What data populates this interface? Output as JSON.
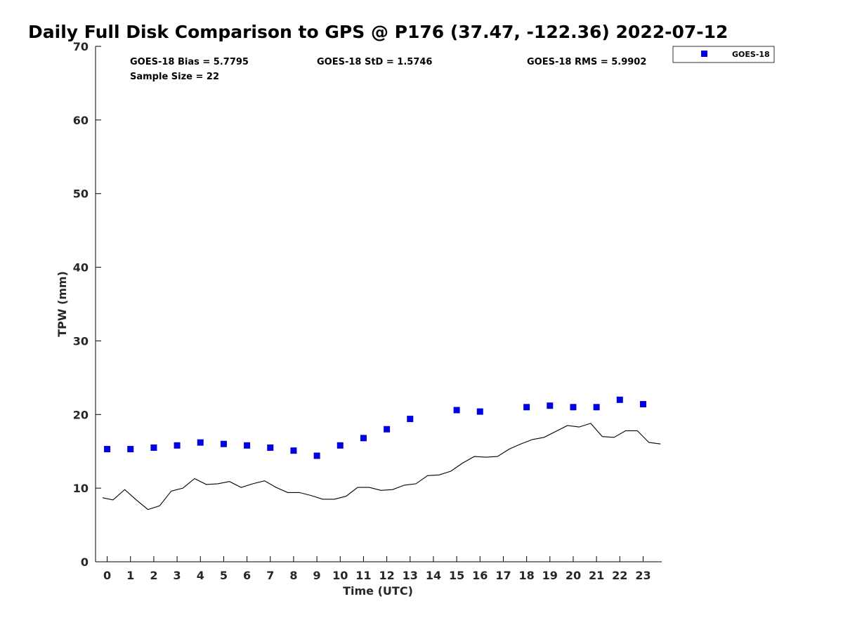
{
  "chart_data": {
    "type": "scatter",
    "title": "Daily Full Disk Comparison to GPS @ P176 (37.47, -122.36) 2022-07-12",
    "xlabel": "Time (UTC)",
    "ylabel": "TPW (mm)",
    "xlim": [
      -0.5,
      23.8
    ],
    "ylim": [
      0,
      70
    ],
    "xticks": [
      0,
      1,
      2,
      3,
      4,
      5,
      6,
      7,
      8,
      9,
      10,
      11,
      12,
      13,
      14,
      15,
      16,
      17,
      18,
      19,
      20,
      21,
      22,
      23
    ],
    "yticks": [
      0,
      10,
      20,
      30,
      40,
      50,
      60,
      70
    ],
    "legend": {
      "position": "top-right-outside",
      "entries": [
        "GOES-18"
      ]
    },
    "stats": {
      "bias": "GOES-18 Bias = 5.7795",
      "std": "GOES-18 StD = 1.5746",
      "rms": "GOES-18 RMS = 5.9902",
      "sample": "Sample Size = 22"
    },
    "series": [
      {
        "name": "GOES-18",
        "kind": "scatter",
        "color": "#0000e0",
        "marker": "square",
        "x": [
          0,
          1,
          2,
          3,
          4,
          5,
          6,
          7,
          8,
          9,
          10,
          11,
          12,
          13,
          15,
          16,
          18,
          19,
          20,
          21,
          22,
          23
        ],
        "y": [
          15.3,
          15.3,
          15.5,
          15.8,
          16.2,
          16.0,
          15.8,
          15.5,
          15.1,
          14.4,
          15.8,
          16.8,
          18.0,
          19.4,
          20.6,
          20.4,
          21.0,
          21.2,
          21.0,
          21.0,
          22.0,
          21.4
        ]
      },
      {
        "name": "GPS",
        "kind": "line",
        "color": "#000000",
        "x": [
          -0.2,
          0.25,
          0.75,
          1.25,
          1.75,
          2.25,
          2.75,
          3.25,
          3.75,
          4.25,
          4.75,
          5.25,
          5.75,
          6.25,
          6.75,
          7.25,
          7.75,
          8.25,
          8.75,
          9.25,
          9.75,
          10.25,
          10.75,
          11.25,
          11.75,
          12.25,
          12.75,
          13.25,
          13.75,
          14.25,
          14.75,
          15.25,
          15.75,
          16.25,
          16.75,
          17.25,
          17.75,
          18.25,
          18.75,
          19.25,
          19.75,
          20.25,
          20.75,
          21.25,
          21.75,
          22.25,
          22.75,
          23.25,
          23.75
        ],
        "y": [
          8.7,
          8.4,
          9.8,
          8.4,
          7.1,
          7.6,
          9.6,
          10.0,
          11.3,
          10.5,
          10.6,
          10.9,
          10.1,
          10.6,
          11.0,
          10.1,
          9.4,
          9.4,
          9.0,
          8.5,
          8.5,
          8.9,
          10.1,
          10.1,
          9.7,
          9.8,
          10.4,
          10.6,
          11.7,
          11.8,
          12.3,
          13.4,
          14.3,
          14.2,
          14.3,
          15.3,
          16.0,
          16.6,
          16.9,
          17.7,
          18.5,
          18.3,
          18.8,
          17.0,
          16.9,
          17.8,
          17.8,
          16.2,
          16.0
        ]
      }
    ]
  }
}
